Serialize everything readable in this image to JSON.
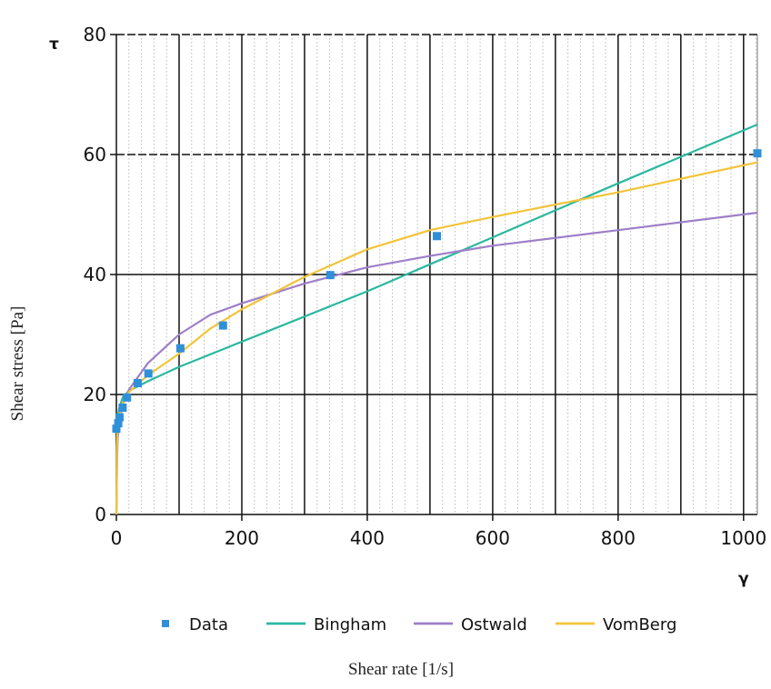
{
  "chart_data": {
    "type": "line",
    "xlabel": "Shear rate [1/s]",
    "ylabel": "Shear stress [Pa]",
    "x_axis_symbol": "γ",
    "y_axis_symbol": "τ",
    "xlim": [
      0,
      1022
    ],
    "ylim": [
      0,
      80
    ],
    "x_ticks": [
      0,
      200,
      400,
      600,
      800,
      1000
    ],
    "y_ticks": [
      0,
      20,
      40,
      60,
      80
    ],
    "x_tick_labels": [
      "0",
      "200",
      "400",
      "600",
      "800",
      "1000"
    ],
    "y_tick_labels": [
      "0",
      "20",
      "40",
      "60",
      "80"
    ],
    "grid": true,
    "legend_position": "bottom",
    "legend": [
      "Data",
      "Bingham",
      "Ostwald",
      "VomBerg"
    ],
    "series": [
      {
        "name": "Data",
        "kind": "scatter",
        "color": "#2f8fd8",
        "points": [
          [
            0,
            14.3
          ],
          [
            3,
            15.2
          ],
          [
            5,
            16.2
          ],
          [
            10,
            17.8
          ],
          [
            17,
            19.5
          ],
          [
            34,
            21.9
          ],
          [
            51,
            23.5
          ],
          [
            102,
            27.7
          ],
          [
            170,
            31.5
          ],
          [
            341,
            39.9
          ],
          [
            511,
            46.4
          ],
          [
            1022,
            60.2
          ]
        ]
      },
      {
        "name": "Bingham",
        "kind": "line",
        "color": "#2bb8a0",
        "points": [
          [
            0,
            0
          ],
          [
            0.5,
            5
          ],
          [
            1,
            10
          ],
          [
            2,
            15
          ],
          [
            4,
            17.5
          ],
          [
            10,
            19.5
          ],
          [
            20,
            20.6
          ],
          [
            50,
            22.2
          ],
          [
            100,
            24.6
          ],
          [
            200,
            28.8
          ],
          [
            400,
            37.2
          ],
          [
            600,
            46.2
          ],
          [
            800,
            55.2
          ],
          [
            1022,
            65.0
          ]
        ]
      },
      {
        "name": "Ostwald",
        "kind": "line",
        "color": "#9e7fc8",
        "points": [
          [
            0,
            0
          ],
          [
            0.5,
            4
          ],
          [
            1,
            9
          ],
          [
            2,
            12.5
          ],
          [
            5,
            15.5
          ],
          [
            10,
            18.2
          ],
          [
            20,
            20.8
          ],
          [
            50,
            25.2
          ],
          [
            100,
            30.0
          ],
          [
            150,
            33.3
          ],
          [
            200,
            35.2
          ],
          [
            300,
            38.5
          ],
          [
            400,
            41.2
          ],
          [
            500,
            43.1
          ],
          [
            600,
            44.8
          ],
          [
            800,
            47.4
          ],
          [
            1022,
            50.3
          ]
        ]
      },
      {
        "name": "VomBerg",
        "kind": "line",
        "color": "#f2c438",
        "points": [
          [
            0,
            0
          ],
          [
            0.5,
            5
          ],
          [
            1,
            11
          ],
          [
            2,
            14.5
          ],
          [
            5,
            16.5
          ],
          [
            10,
            18.5
          ],
          [
            20,
            20.4
          ],
          [
            50,
            23.2
          ],
          [
            100,
            26.8
          ],
          [
            150,
            31.0
          ],
          [
            200,
            34.2
          ],
          [
            300,
            39.6
          ],
          [
            400,
            44.2
          ],
          [
            500,
            47.4
          ],
          [
            600,
            49.6
          ],
          [
            800,
            53.7
          ],
          [
            1022,
            58.7
          ]
        ]
      }
    ]
  }
}
